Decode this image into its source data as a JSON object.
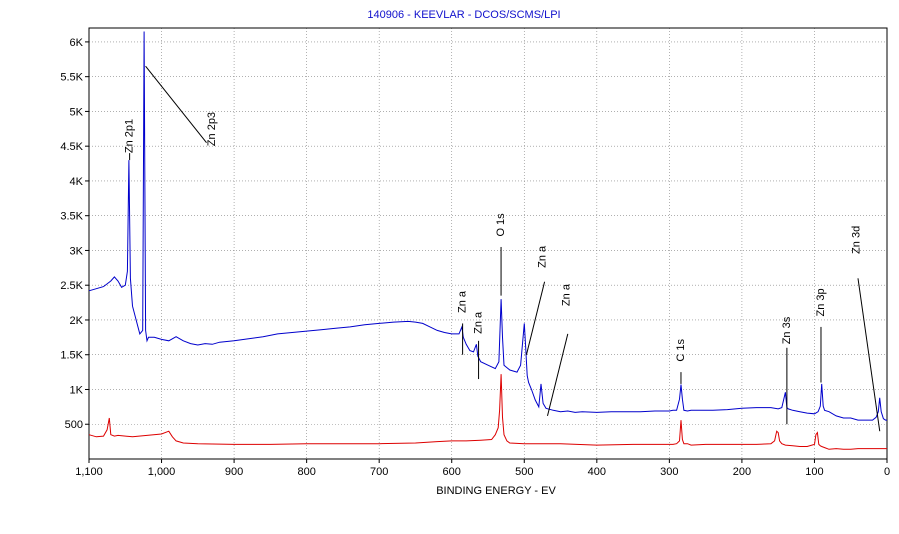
{
  "chart_data": {
    "type": "line",
    "title": "140906 - KEEVLAR - DCOS/SCMS/LPI",
    "xlabel": "BINDING ENERGY - EV",
    "ylabel": "",
    "xlim": [
      1100,
      0
    ],
    "ylim": [
      0,
      6200
    ],
    "x_reversed": true,
    "grid": true,
    "x_ticks": [
      1100,
      1000,
      900,
      800,
      700,
      600,
      500,
      400,
      300,
      200,
      100,
      0
    ],
    "x_tick_labels": [
      "1,100",
      "1,000",
      "900",
      "800",
      "700",
      "600",
      "500",
      "400",
      "300",
      "200",
      "100",
      "0"
    ],
    "y_ticks": [
      500,
      1000,
      1500,
      2000,
      2500,
      3000,
      3500,
      4000,
      4500,
      5000,
      5500,
      6000
    ],
    "y_tick_labels": [
      "500",
      "1K",
      "1.5K",
      "2K",
      "2.5K",
      "3K",
      "3.5K",
      "4K",
      "4.5K",
      "5K",
      "5.5K",
      "6K"
    ],
    "series": [
      {
        "color": "#0000cc",
        "x": [
          1100,
          1090,
          1080,
          1070,
          1065,
          1060,
          1055,
          1050,
          1047,
          1045,
          1043,
          1040,
          1030,
          1026,
          1024,
          1022,
          1020,
          1018,
          1010,
          1000,
          990,
          980,
          970,
          960,
          950,
          940,
          930,
          920,
          900,
          880,
          860,
          840,
          820,
          800,
          780,
          760,
          740,
          720,
          700,
          680,
          660,
          650,
          640,
          630,
          620,
          610,
          600,
          590,
          586,
          584,
          580,
          575,
          570,
          566,
          564,
          560,
          550,
          540,
          535,
          532,
          530,
          528,
          520,
          510,
          505,
          500,
          498,
          496,
          494,
          490,
          485,
          480,
          477,
          474,
          470,
          460,
          450,
          440,
          430,
          420,
          400,
          380,
          360,
          340,
          320,
          300,
          295,
          290,
          286,
          284,
          282,
          280,
          275,
          270,
          260,
          240,
          220,
          200,
          180,
          160,
          150,
          145,
          140,
          138,
          136,
          130,
          120,
          110,
          100,
          95,
          92,
          90,
          88,
          86,
          80,
          70,
          60,
          50,
          40,
          30,
          20,
          15,
          12,
          10,
          8,
          5,
          2,
          0
        ],
        "y": [
          2420,
          2450,
          2480,
          2560,
          2620,
          2560,
          2470,
          2500,
          2700,
          4300,
          2600,
          2200,
          1800,
          1850,
          6150,
          1850,
          1700,
          1750,
          1750,
          1720,
          1700,
          1760,
          1700,
          1660,
          1640,
          1660,
          1650,
          1680,
          1700,
          1730,
          1760,
          1800,
          1820,
          1840,
          1860,
          1880,
          1900,
          1930,
          1950,
          1970,
          1980,
          1970,
          1950,
          1900,
          1850,
          1820,
          1800,
          1800,
          1900,
          1750,
          1650,
          1560,
          1540,
          1650,
          1480,
          1400,
          1350,
          1300,
          1400,
          2300,
          1750,
          1350,
          1280,
          1250,
          1350,
          1950,
          1600,
          1200,
          1100,
          1000,
          850,
          750,
          1080,
          800,
          730,
          700,
          680,
          690,
          670,
          680,
          670,
          680,
          680,
          680,
          690,
          690,
          700,
          700,
          860,
          1070,
          860,
          700,
          690,
          700,
          700,
          700,
          710,
          730,
          740,
          740,
          720,
          740,
          960,
          740,
          720,
          700,
          680,
          660,
          650,
          680,
          760,
          1080,
          760,
          700,
          680,
          620,
          590,
          590,
          560,
          560,
          560,
          600,
          680,
          880,
          680,
          580,
          560,
          560
        ]
      },
      {
        "color": "#dd0000",
        "x": [
          1100,
          1090,
          1080,
          1075,
          1072,
          1070,
          1065,
          1060,
          1040,
          1020,
          1000,
          990,
          985,
          980,
          970,
          950,
          900,
          850,
          800,
          750,
          700,
          650,
          620,
          600,
          580,
          560,
          545,
          540,
          536,
          534,
          532,
          530,
          528,
          524,
          520,
          500,
          480,
          450,
          400,
          350,
          300,
          295,
          290,
          286,
          284,
          282,
          280,
          275,
          270,
          250,
          200,
          180,
          160,
          155,
          152,
          150,
          148,
          145,
          140,
          130,
          120,
          110,
          100,
          98,
          96,
          94,
          92,
          90,
          85,
          80,
          70,
          60,
          50,
          40,
          30,
          20,
          10,
          0
        ],
        "y": [
          350,
          320,
          330,
          420,
          590,
          350,
          330,
          340,
          320,
          340,
          360,
          400,
          320,
          260,
          230,
          220,
          210,
          210,
          220,
          220,
          220,
          230,
          250,
          260,
          260,
          270,
          280,
          350,
          450,
          700,
          1220,
          600,
          350,
          260,
          230,
          220,
          220,
          220,
          200,
          210,
          210,
          210,
          220,
          260,
          560,
          280,
          220,
          220,
          200,
          210,
          210,
          210,
          220,
          260,
          400,
          380,
          260,
          220,
          200,
          190,
          180,
          180,
          210,
          350,
          380,
          210,
          190,
          180,
          160,
          140,
          150,
          140,
          140,
          150,
          150,
          150,
          150,
          150
        ]
      }
    ],
    "annotations": [
      {
        "label": "Zn 2p1",
        "x": 1044,
        "y": 4300,
        "text_x": 1044,
        "text_y": 4400,
        "leader_start_x": 1044,
        "leader_start_y": 4400,
        "leader_end_x": 1044,
        "leader_end_y": 4300
      },
      {
        "label": "Zn 2p3",
        "x": 1022,
        "y": 5650,
        "text_x": 930,
        "text_y": 4500,
        "leader_start_x": 938,
        "leader_start_y": 4550,
        "leader_end_x": 1022,
        "leader_end_y": 5650
      },
      {
        "label": "Zn a",
        "x": 585,
        "y": 1500,
        "text_x": 585,
        "text_y": 2100,
        "leader_start_x": 585,
        "leader_start_y": 1950,
        "leader_end_x": 585,
        "leader_end_y": 1500
      },
      {
        "label": "Zn a",
        "x": 562,
        "y": 1150,
        "text_x": 563,
        "text_y": 1800,
        "leader_start_x": 563,
        "leader_start_y": 1700,
        "leader_end_x": 563,
        "leader_end_y": 1150
      },
      {
        "label": "O 1s",
        "x": 532,
        "y": 2350,
        "text_x": 532,
        "text_y": 3200,
        "leader_start_x": 532,
        "leader_start_y": 3050,
        "leader_end_x": 532,
        "leader_end_y": 2350
      },
      {
        "label": "Zn a",
        "x": 497,
        "y": 1500,
        "text_x": 475,
        "text_y": 2750,
        "leader_start_x": 472,
        "leader_start_y": 2550,
        "leader_end_x": 497,
        "leader_end_y": 1500
      },
      {
        "label": "Zn a",
        "x": 468,
        "y": 620,
        "text_x": 442,
        "text_y": 2200,
        "leader_start_x": 440,
        "leader_start_y": 1800,
        "leader_end_x": 468,
        "leader_end_y": 620
      },
      {
        "label": "C 1s",
        "x": 284,
        "y": 1080,
        "text_x": 284,
        "text_y": 1400,
        "leader_start_x": 284,
        "leader_start_y": 1250,
        "leader_end_x": 284,
        "leader_end_y": 1080
      },
      {
        "label": "Zn 3s",
        "x": 138,
        "y": 500,
        "text_x": 138,
        "text_y": 1650,
        "leader_start_x": 138,
        "leader_start_y": 1600,
        "leader_end_x": 138,
        "leader_end_y": 500
      },
      {
        "label": "Zn 3p",
        "x": 91,
        "y": 1100,
        "text_x": 91,
        "text_y": 2050,
        "leader_start_x": 91,
        "leader_start_y": 1900,
        "leader_end_x": 91,
        "leader_end_y": 1100
      },
      {
        "label": "Zn 3d",
        "x": 10,
        "y": 400,
        "text_x": 42,
        "text_y": 2950,
        "leader_start_x": 40,
        "leader_start_y": 2600,
        "leader_end_x": 10,
        "leader_end_y": 400
      }
    ]
  }
}
